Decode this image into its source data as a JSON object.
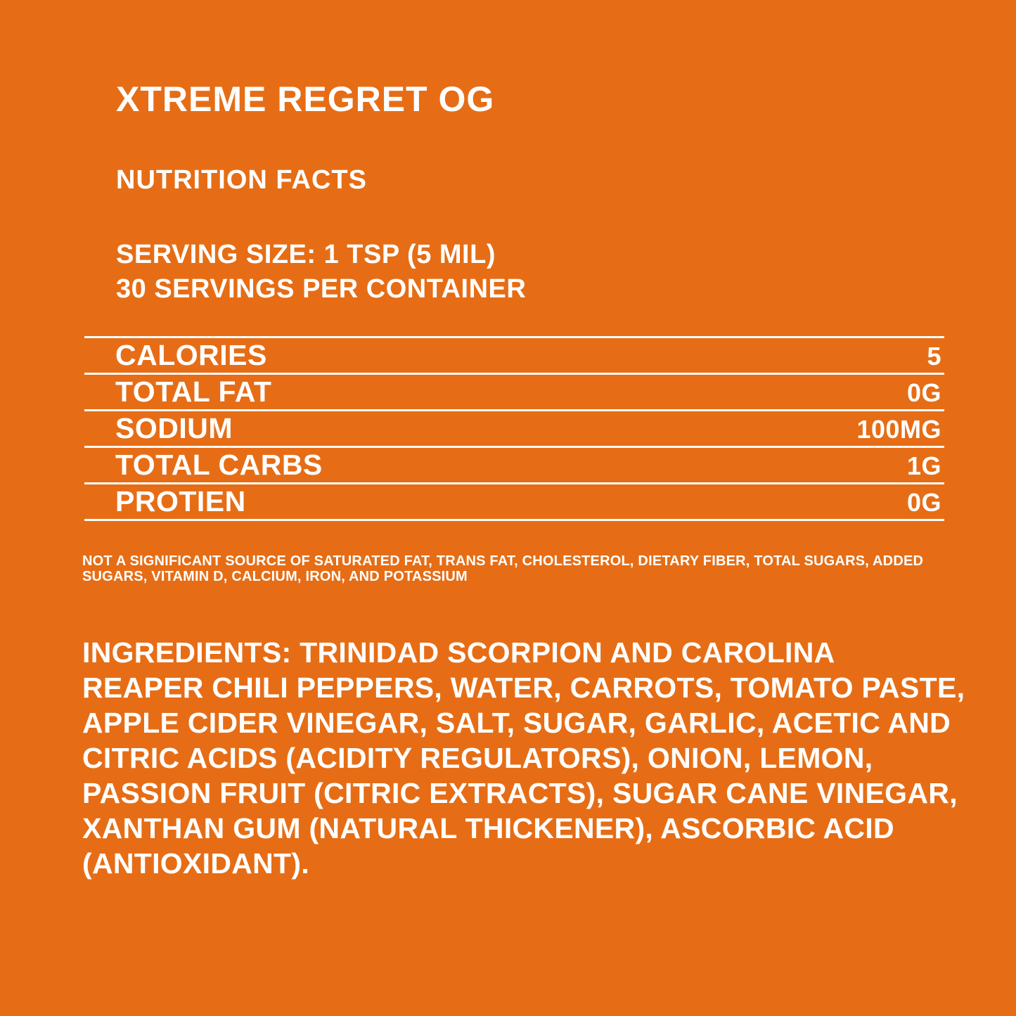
{
  "label": {
    "product_name": "XTREME REGRET OG",
    "section_title": "NUTRITION FACTS",
    "serving": {
      "serving_size": "SERVING SIZE: 1 TSP (5 MIL)",
      "servings_per_container": "30 SERVINGS PER CONTAINER"
    },
    "facts": [
      {
        "name": "CALORIES",
        "value": "5"
      },
      {
        "name": "TOTAL FAT",
        "value": "0G"
      },
      {
        "name": "SODIUM",
        "value": "100MG"
      },
      {
        "name": "TOTAL CARBS",
        "value": "1G"
      },
      {
        "name": "PROTIEN",
        "value": "0G"
      }
    ],
    "disclaimer_lines": [
      "NOT A SIGNIFICANT SOURCE OF SATURATED FAT, TRANS FAT, CHOLESTEROL, DIETARY FIBER, TOTAL SUGARS, ADDED",
      "SUGARS, VITAMIN D, CALCIUM, IRON, AND POTASSIUM"
    ],
    "ingredients_lines": [
      "INGREDIENTS: TRINIDAD SCORPION AND CAROLINA",
      "REAPER CHILI PEPPERS, WATER, CARROTS, TOMATO PASTE,",
      "APPLE CIDER VINEGAR, SALT, SUGAR, GARLIC, ACETIC AND",
      "CITRIC ACIDS (ACIDITY REGULATORS), ONION, LEMON,",
      "PASSION FRUIT (CITRIC EXTRACTS), SUGAR CANE VINEGAR,",
      "XANTHAN GUM (NATURAL THICKENER), ASCORBIC ACID",
      "(ANTIOXIDANT)."
    ],
    "colors": {
      "background": "#E66D15",
      "text": "#FFFFFF"
    }
  }
}
